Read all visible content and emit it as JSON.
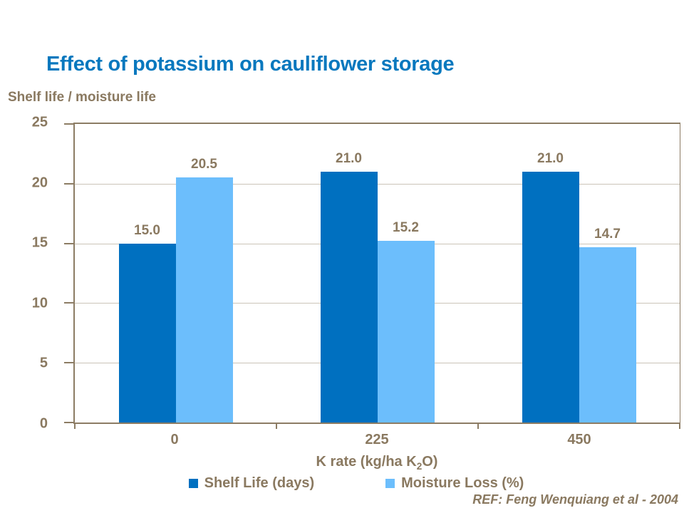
{
  "slide": {
    "title": "Effect of potassium on cauliflower storage"
  },
  "colors": {
    "title_blue": "#0878BE",
    "text_brown": "#8A7960",
    "axis_line": "#8C7C64",
    "gridline": "#CBC4B8",
    "shelf_life_bar": "#0070C0",
    "moisture_loss_bar": "#6CBEFC"
  },
  "chart_data": {
    "type": "bar",
    "title": "Effect of potassium on cauliflower storage",
    "ylabel": "Shelf life / moisture life",
    "xlabel": {
      "pre": "K rate (kg/ha K",
      "sub": "2",
      "post": "O)"
    },
    "categories": [
      "0",
      "225",
      "450"
    ],
    "series": [
      {
        "name": "Shelf Life (days)",
        "color": "#0070C0",
        "values": [
          15.0,
          21.0,
          21.0
        ]
      },
      {
        "name": "Moisture Loss (%)",
        "color": "#6CBEFC",
        "values": [
          20.5,
          15.2,
          14.7
        ]
      }
    ],
    "value_label_decimals": 1,
    "ylim": [
      0,
      25
    ],
    "yticks": [
      0,
      5,
      10,
      15,
      20,
      25
    ],
    "grid": true,
    "legend_position": "bottom",
    "reference": "REF: Feng Wenquiang et al - 2004"
  }
}
